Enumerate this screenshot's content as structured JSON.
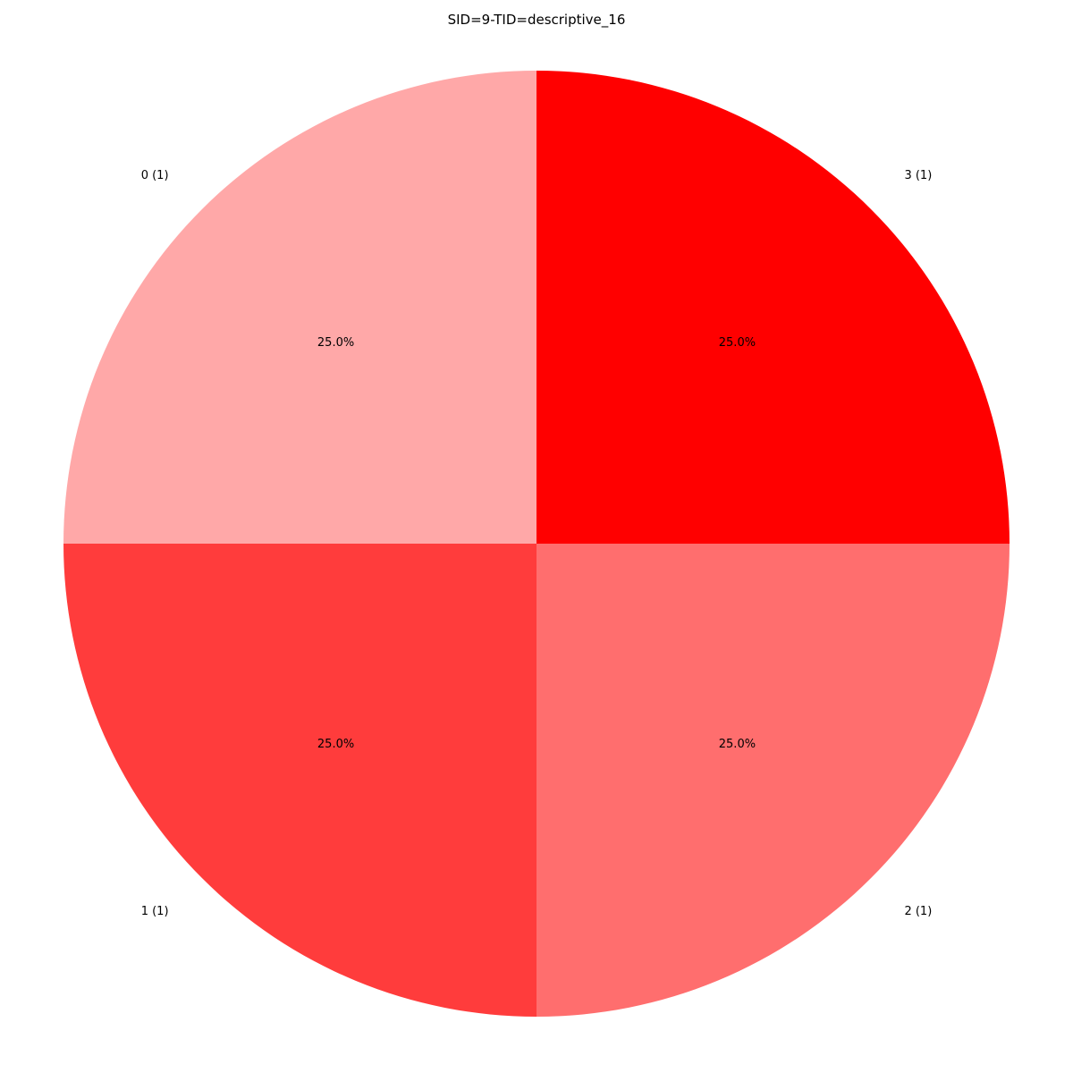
{
  "chart_data": {
    "type": "pie",
    "title": "SID=9-TID=descriptive_16",
    "slices": [
      {
        "label": "0 (1)",
        "value": 1,
        "percent_label": "25.0%",
        "color": "#ffa8a8"
      },
      {
        "label": "1 (1)",
        "value": 1,
        "percent_label": "25.0%",
        "color": "#ff3c3c"
      },
      {
        "label": "2 (1)",
        "value": 1,
        "percent_label": "25.0%",
        "color": "#ff6e6e"
      },
      {
        "label": "3 (1)",
        "value": 1,
        "percent_label": "25.0%",
        "color": "#ff0000"
      }
    ]
  }
}
